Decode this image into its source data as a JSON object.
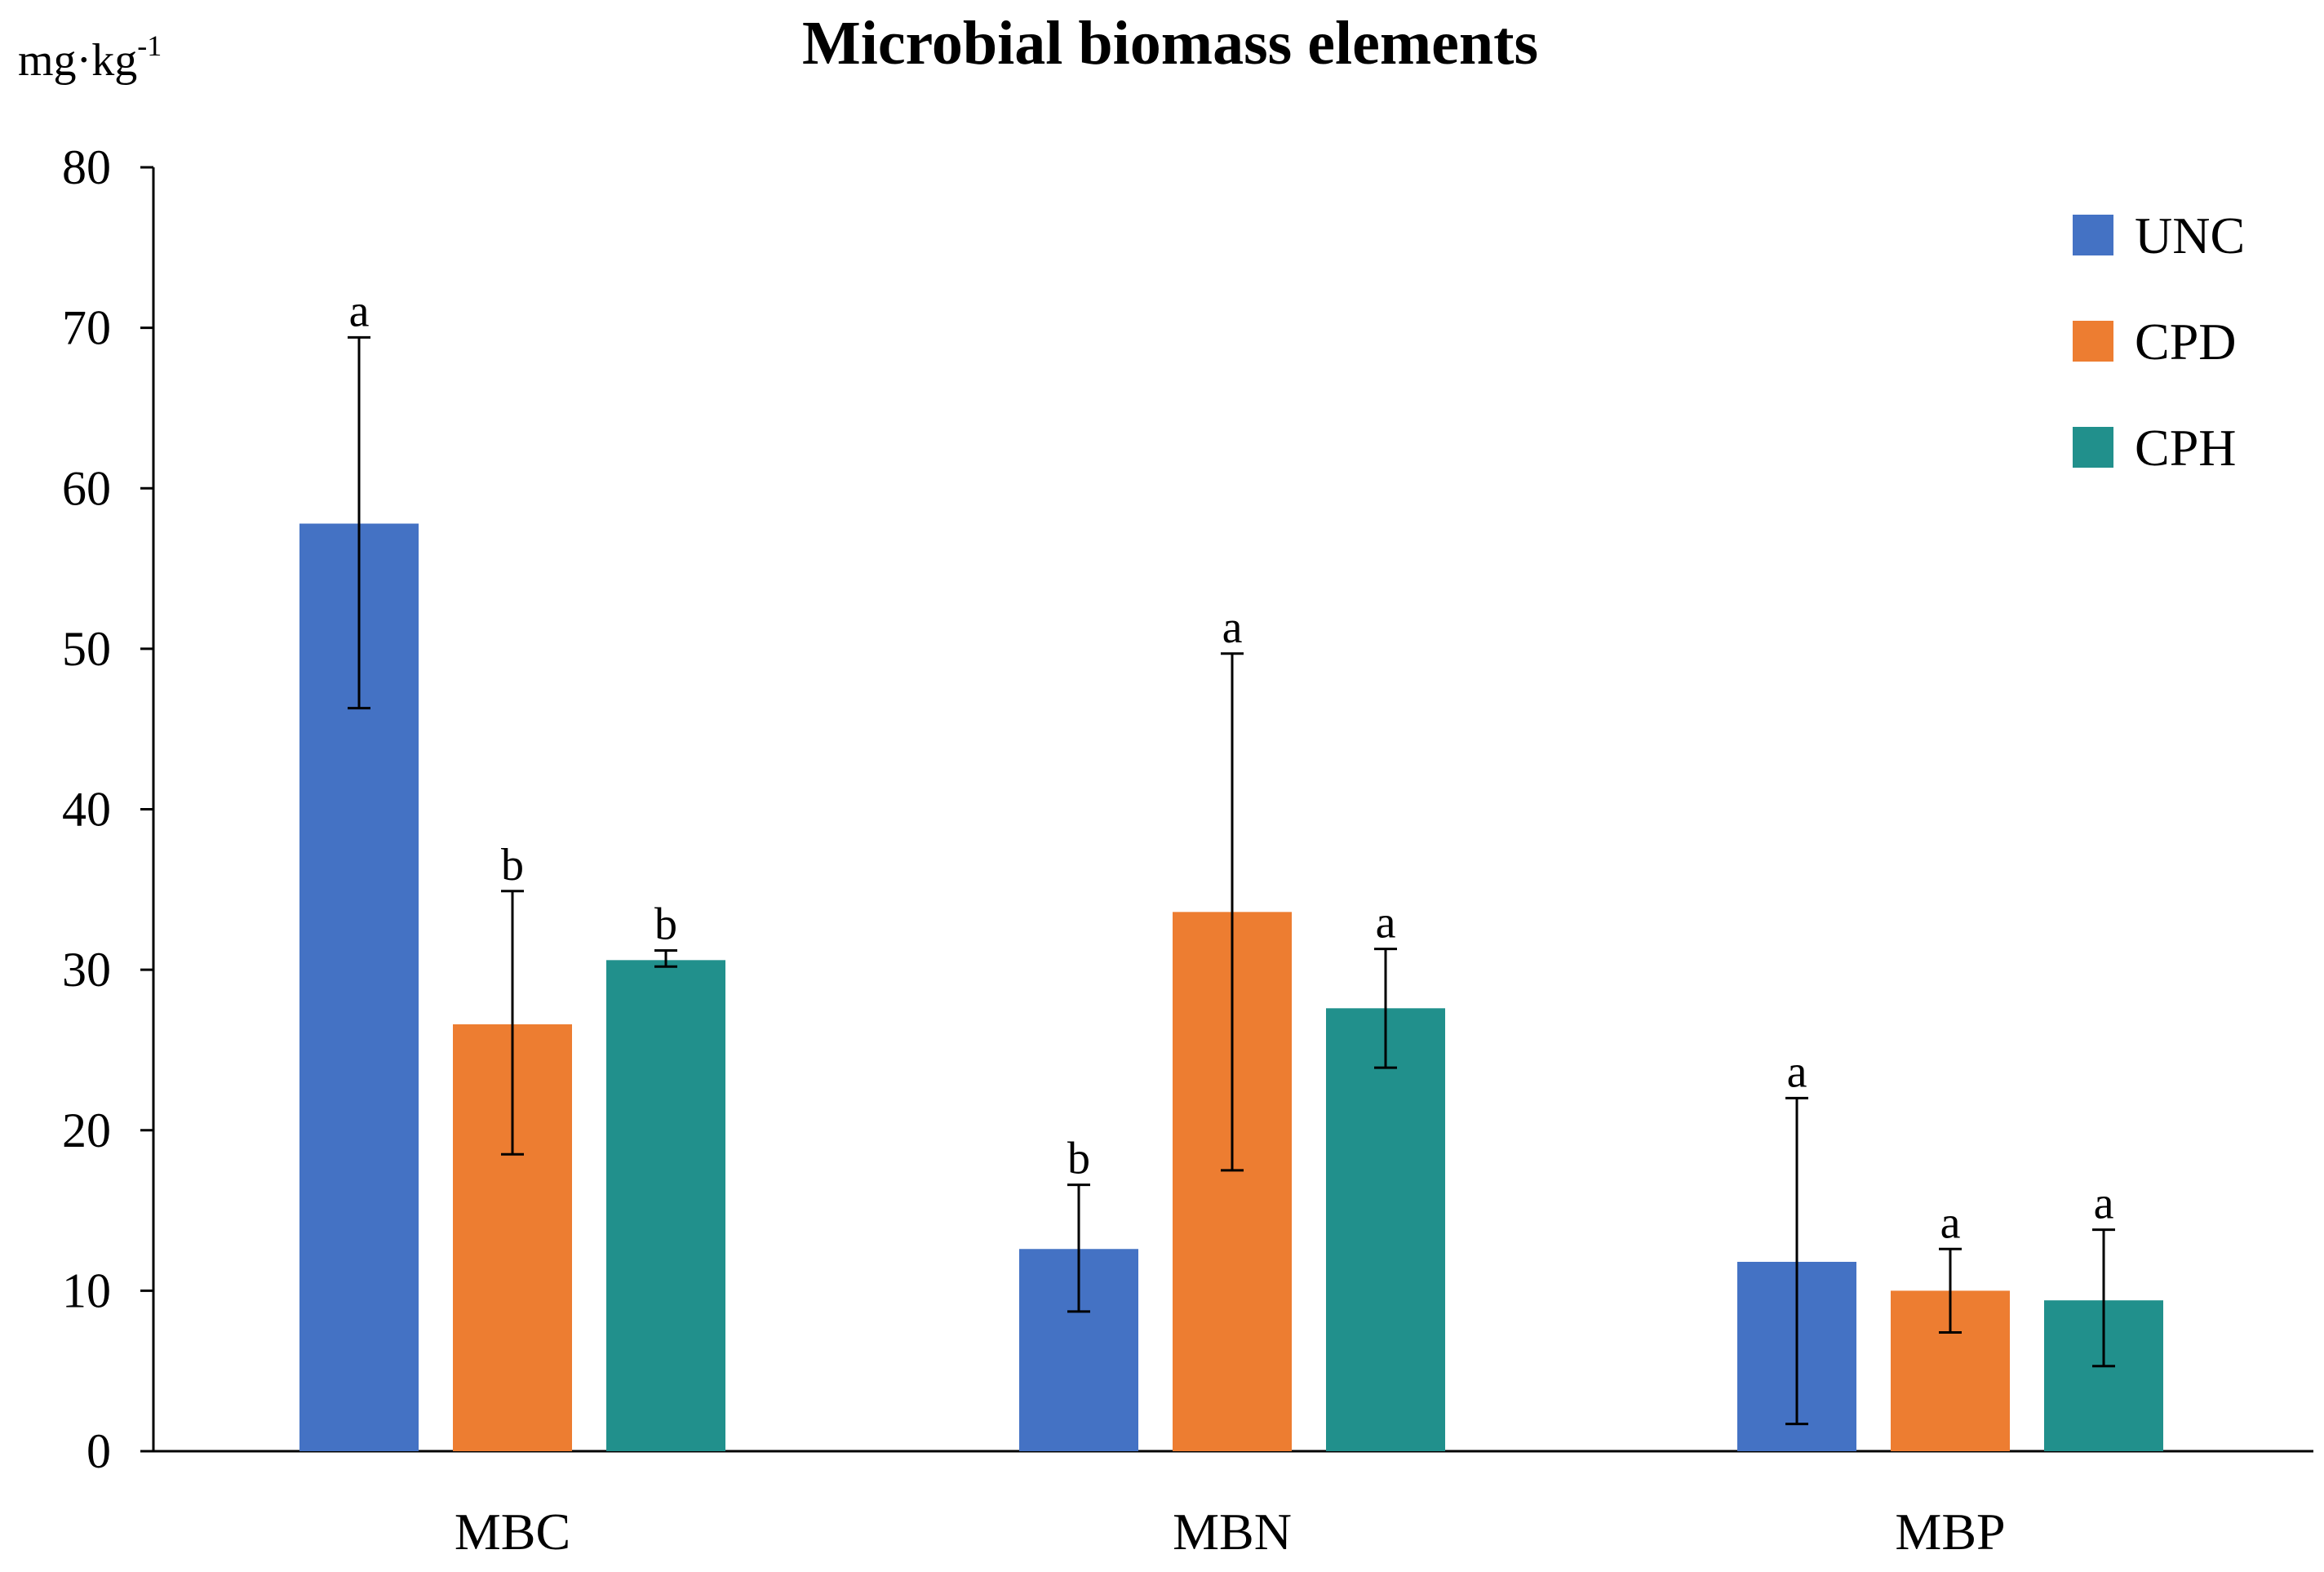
{
  "chart_data": {
    "type": "bar",
    "title": "Microbial biomass elements",
    "ylabel_main": "mg·kg",
    "ylabel_sup": "-1",
    "xlabel": "",
    "ylim": [
      0,
      80
    ],
    "yticks": [
      0,
      10,
      20,
      30,
      40,
      50,
      60,
      70,
      80
    ],
    "categories": [
      "MBC",
      "MBN",
      "MBP"
    ],
    "legend_position": "top-right",
    "series": [
      {
        "name": "UNC",
        "color": "#4472C4",
        "values": [
          57.8,
          12.6,
          11.8
        ],
        "err_low": [
          46.3,
          8.7,
          1.7
        ],
        "err_high": [
          69.4,
          16.6,
          22.0
        ],
        "letters": [
          "a",
          "b",
          "a"
        ]
      },
      {
        "name": "CPD",
        "color": "#ED7D31",
        "values": [
          26.6,
          33.6,
          10.0
        ],
        "err_low": [
          18.5,
          17.5,
          7.4
        ],
        "err_high": [
          34.9,
          49.7,
          12.6
        ],
        "letters": [
          "b",
          "a",
          "a"
        ]
      },
      {
        "name": "CPH",
        "color": "#21908C",
        "values": [
          30.6,
          27.6,
          9.4
        ],
        "err_low": [
          30.2,
          23.9,
          5.3
        ],
        "err_high": [
          31.2,
          31.3,
          13.8
        ],
        "letters": [
          "b",
          "a",
          "a"
        ]
      }
    ]
  }
}
